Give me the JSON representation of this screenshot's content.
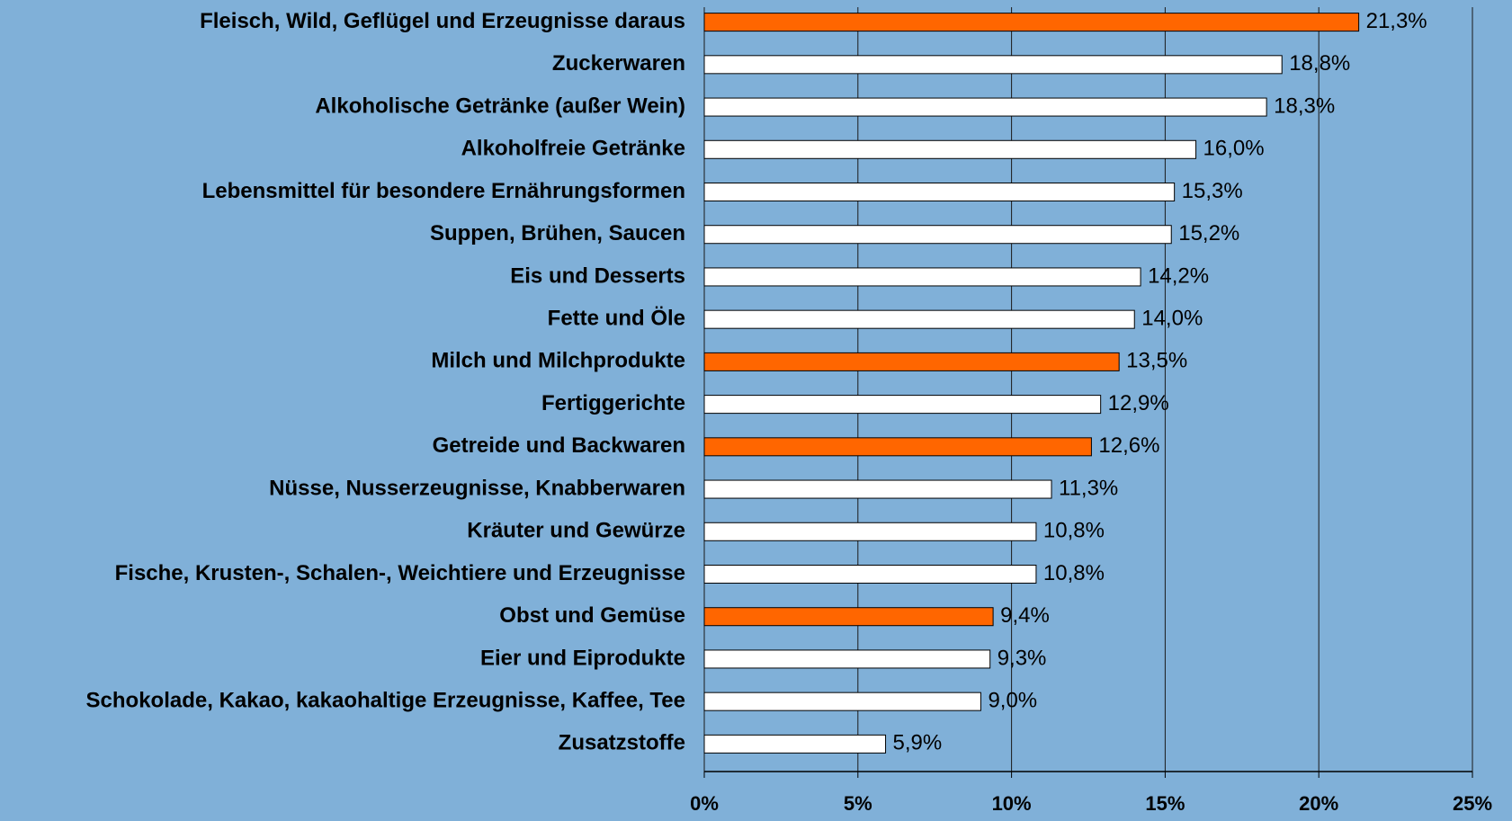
{
  "chart_data": {
    "type": "barh",
    "categories": [
      "Fleisch, Wild, Geflügel und Erzeugnisse daraus",
      "Zuckerwaren",
      "Alkoholische Getränke (außer Wein)",
      "Alkoholfreie Getränke",
      "Lebensmittel für besondere Ernährungsformen",
      "Suppen, Brühen, Saucen",
      "Eis und Desserts",
      "Fette und Öle",
      "Milch und Milchprodukte",
      "Fertiggerichte",
      "Getreide und Backwaren",
      "Nüsse, Nusserzeugnisse, Knabberwaren",
      "Kräuter und Gewürze",
      "Fische, Krusten-, Schalen-, Weichtiere und Erzeugnisse",
      "Obst und Gemüse",
      "Eier und Eiprodukte",
      "Schokolade, Kakao, kakaohaltige Erzeugnisse, Kaffee, Tee",
      "Zusatzstoffe"
    ],
    "values": [
      21.3,
      18.8,
      18.3,
      16.0,
      15.3,
      15.2,
      14.2,
      14.0,
      13.5,
      12.9,
      12.6,
      11.3,
      10.8,
      10.8,
      9.4,
      9.3,
      9.0,
      5.9
    ],
    "value_labels": [
      "21,3%",
      "18,8%",
      "18,3%",
      "16,0%",
      "15,3%",
      "15,2%",
      "14,2%",
      "14,0%",
      "13,5%",
      "12,9%",
      "12,6%",
      "11,3%",
      "10,8%",
      "10,8%",
      "9,4%",
      "9,3%",
      "9,0%",
      "5,9%"
    ],
    "colors": [
      "#ff6600",
      "#ffffff",
      "#ffffff",
      "#ffffff",
      "#ffffff",
      "#ffffff",
      "#ffffff",
      "#ffffff",
      "#ff6600",
      "#ffffff",
      "#ff6600",
      "#ffffff",
      "#ffffff",
      "#ffffff",
      "#ff6600",
      "#ffffff",
      "#ffffff",
      "#ffffff"
    ],
    "xlim": [
      0,
      25
    ],
    "xticks": [
      {
        "value": 0,
        "label": "0%"
      },
      {
        "value": 5,
        "label": "5%"
      },
      {
        "value": 10,
        "label": "10%"
      },
      {
        "value": 15,
        "label": "15%"
      },
      {
        "value": 20,
        "label": "20%"
      },
      {
        "value": 25,
        "label": "25%"
      }
    ],
    "grid": true
  }
}
